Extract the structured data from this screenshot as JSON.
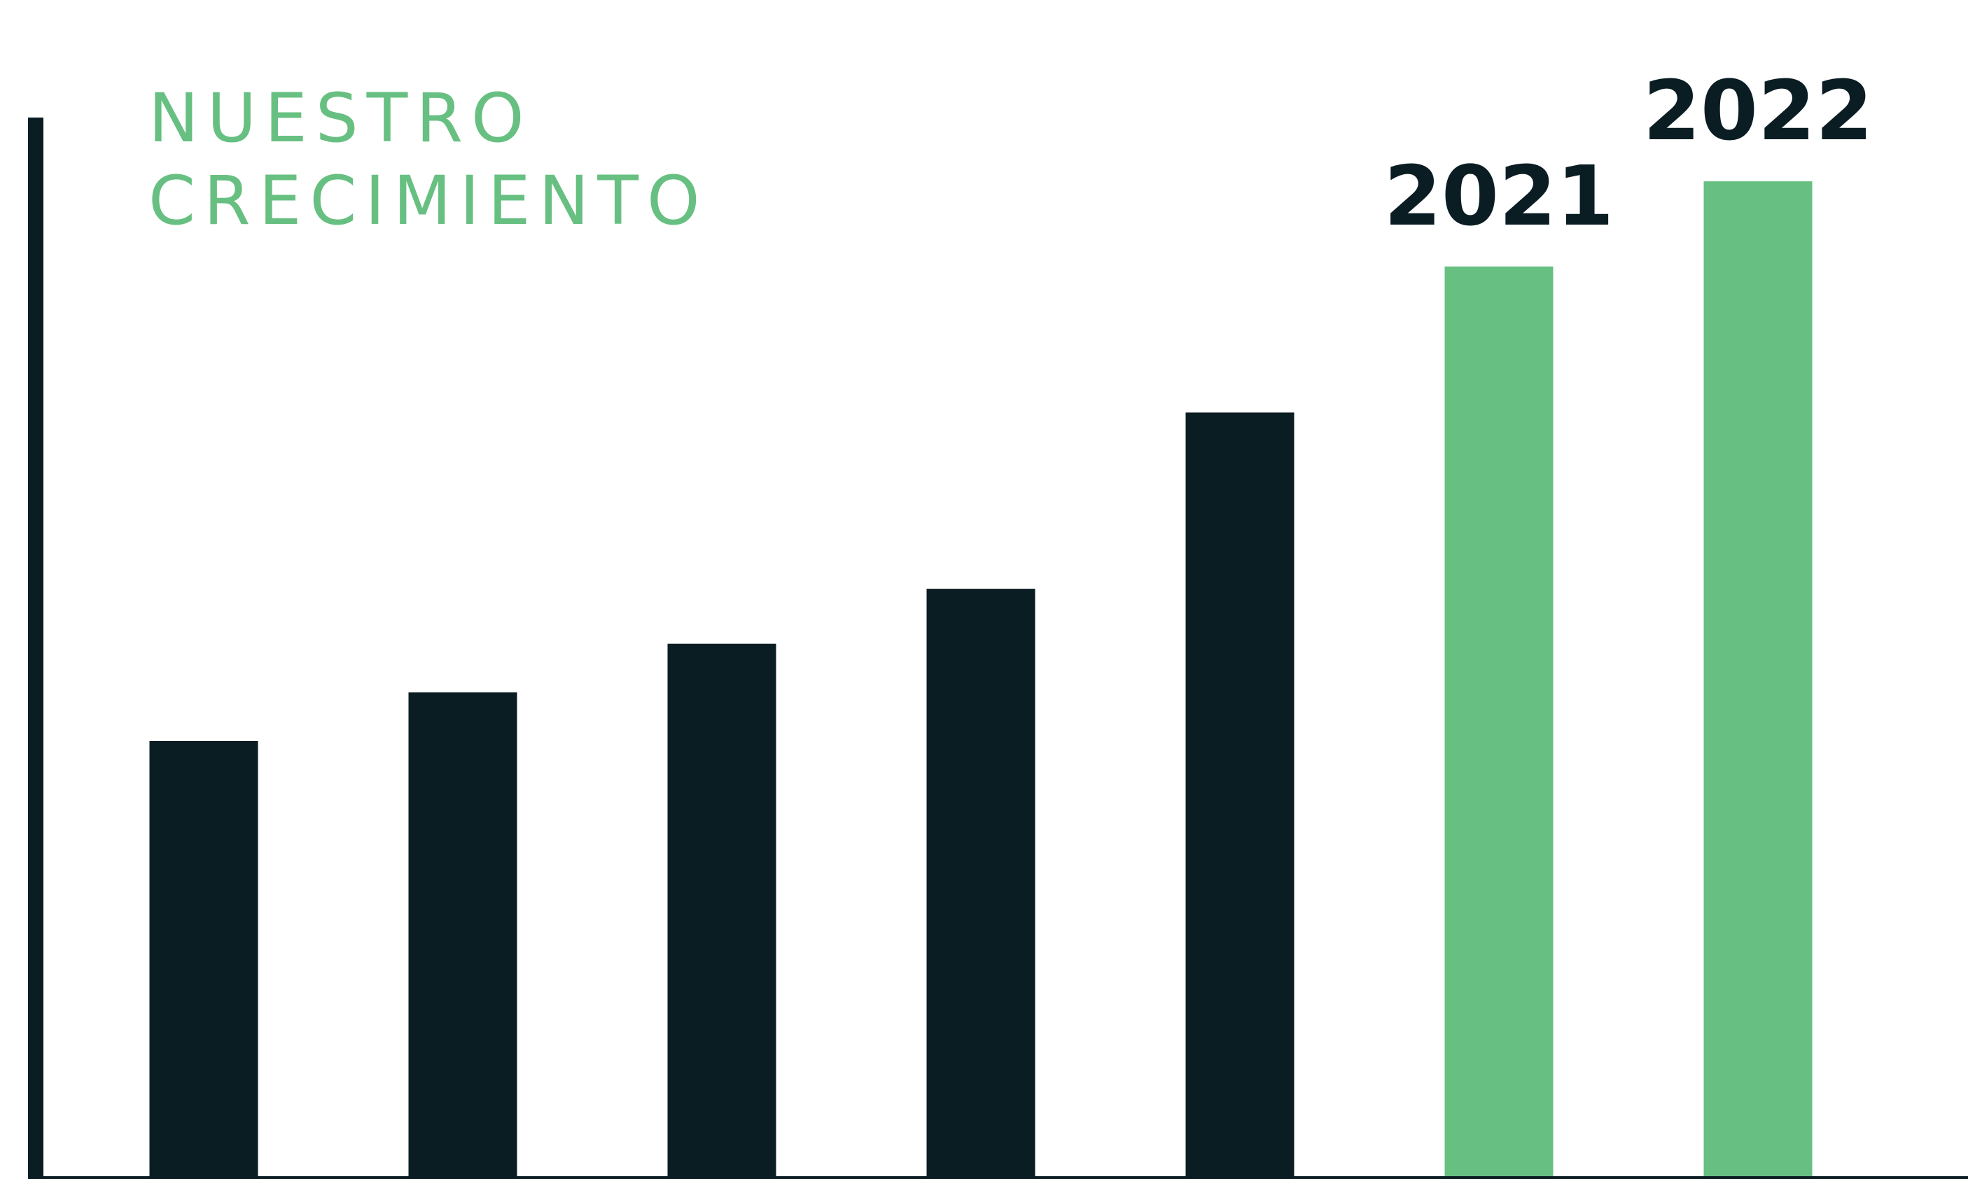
{
  "chart_data": {
    "type": "bar",
    "title_lines": [
      "NUESTRO",
      "CRECIMIENTO"
    ],
    "categories": [
      "",
      "",
      "",
      "",
      "",
      "2021",
      "2022"
    ],
    "values": [
      3.6,
      4.0,
      4.4,
      4.85,
      6.3,
      7.5,
      8.2
    ],
    "ylim": [
      0,
      9
    ],
    "grid": false,
    "legend": "none",
    "xlabel": "",
    "ylabel": "",
    "colors": {
      "bar": [
        "#0a1d23",
        "#0a1d23",
        "#0a1d23",
        "#0a1d23",
        "#0a1d23",
        "#67c081",
        "#67c081"
      ],
      "axis": "#0a1d23",
      "title": "#67c081",
      "label": "#0a1d23"
    }
  }
}
